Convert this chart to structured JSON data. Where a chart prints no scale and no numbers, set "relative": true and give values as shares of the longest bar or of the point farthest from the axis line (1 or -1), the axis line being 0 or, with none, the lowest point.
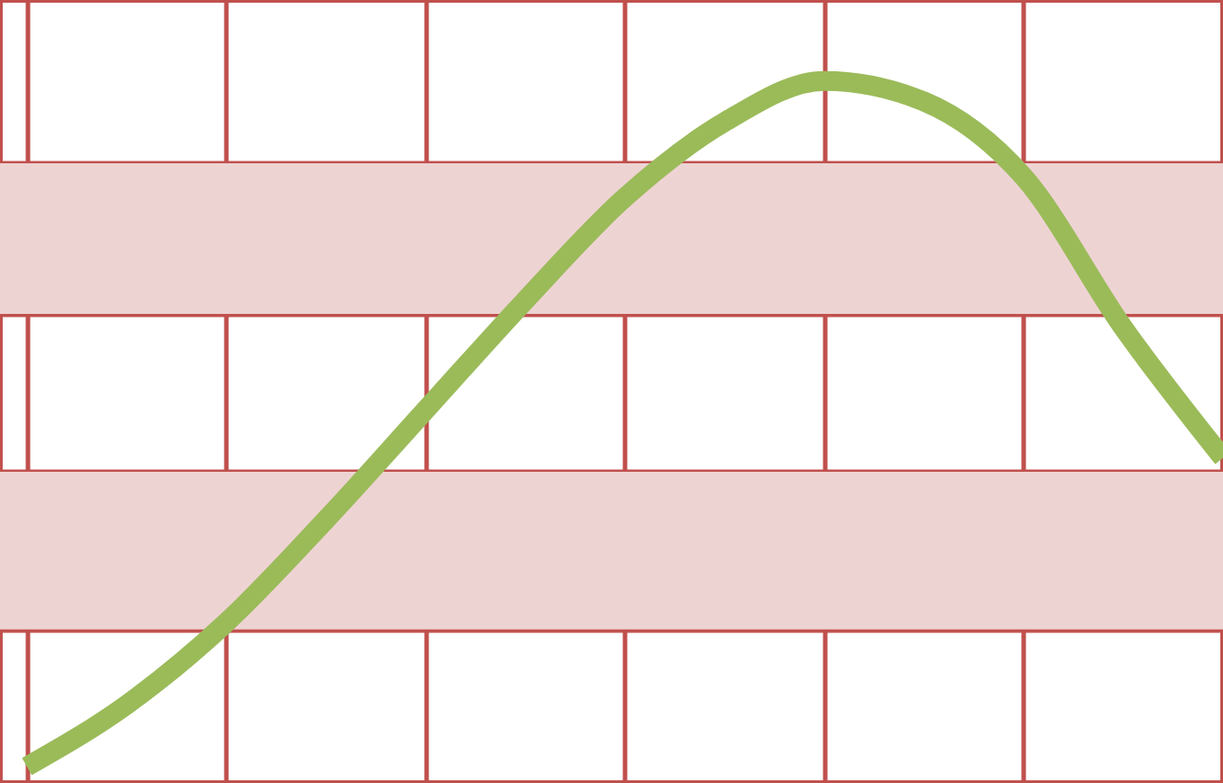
{
  "chart_data": {
    "type": "line",
    "relative": true,
    "grid": true,
    "categories": [
      null,
      null,
      null,
      null,
      null,
      null,
      null,
      null,
      null,
      null,
      null,
      null,
      null
    ],
    "series": [
      {
        "color": "#9bbb59",
        "values": [
          0,
          0.09,
          0.21,
          0.36,
          0.52,
          0.68,
          0.83,
          0.94,
          1,
          0.97,
          0.86,
          0.64,
          0.45
        ]
      }
    ],
    "bands": [
      {
        "axis": "y",
        "from": 0.66,
        "to": 0.88,
        "color": "#eed3d3"
      },
      {
        "axis": "y",
        "from": 0.2,
        "to": 0.43,
        "color": "#eed3d3"
      }
    ]
  }
}
